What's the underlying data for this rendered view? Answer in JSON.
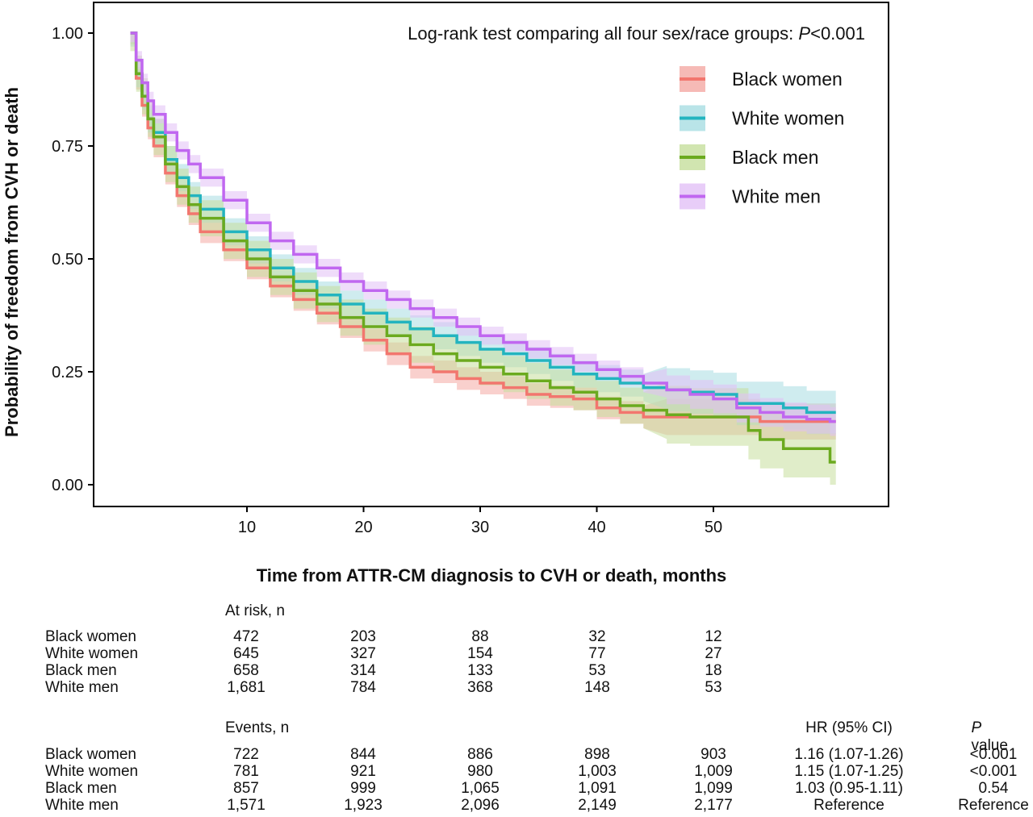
{
  "chart_data": {
    "type": "line",
    "annotation_prefix": "Log-rank test comparing all four sex/race groups: ",
    "annotation_p": "P",
    "annotation_value": "<0.001",
    "xlabel": "Time from ATTR-CM diagnosis to CVH or death, months",
    "ylabel": "Probability of freedom from CVH or death",
    "x_ticks": [
      10,
      20,
      30,
      40,
      50
    ],
    "y_ticks": [
      "1.00",
      "0.75",
      "0.50",
      "0.25",
      "0.00"
    ],
    "y_tick_values": [
      1.0,
      0.75,
      0.5,
      0.25,
      0.0
    ],
    "xlim": [
      -3,
      63
    ],
    "ylim": [
      -0.05,
      1.07
    ],
    "legend_position": "top-right",
    "series": [
      {
        "name": "Black women",
        "color": "#F2766E",
        "band_color": "#F4A9A4",
        "x": [
          0,
          0.5,
          1,
          1.5,
          2,
          3,
          4,
          5,
          6,
          8,
          10,
          12,
          14,
          16,
          18,
          20,
          22,
          24,
          26,
          28,
          30,
          32,
          34,
          36,
          38,
          40,
          42,
          44,
          46,
          48,
          50,
          52,
          54,
          56,
          58,
          60
        ],
        "y": [
          1.0,
          0.9,
          0.84,
          0.79,
          0.75,
          0.69,
          0.64,
          0.6,
          0.56,
          0.52,
          0.48,
          0.44,
          0.41,
          0.38,
          0.35,
          0.32,
          0.29,
          0.26,
          0.25,
          0.235,
          0.225,
          0.215,
          0.2,
          0.195,
          0.19,
          0.17,
          0.16,
          0.15,
          0.15,
          0.15,
          0.15,
          0.15,
          0.14,
          0.14,
          0.14,
          0.14
        ],
        "ci": 0.025
      },
      {
        "name": "White women",
        "color": "#23B4BF",
        "band_color": "#A8DDE2",
        "x": [
          0,
          0.5,
          1,
          1.5,
          2,
          3,
          4,
          5,
          6,
          8,
          10,
          12,
          14,
          16,
          18,
          20,
          22,
          24,
          26,
          28,
          30,
          32,
          34,
          36,
          38,
          40,
          42,
          44,
          46,
          48,
          50,
          52,
          54,
          56,
          58,
          60
        ],
        "y": [
          1.0,
          0.91,
          0.86,
          0.81,
          0.78,
          0.72,
          0.68,
          0.64,
          0.61,
          0.56,
          0.52,
          0.48,
          0.45,
          0.42,
          0.4,
          0.38,
          0.36,
          0.345,
          0.33,
          0.315,
          0.3,
          0.29,
          0.275,
          0.26,
          0.245,
          0.235,
          0.225,
          0.215,
          0.21,
          0.205,
          0.2,
          0.18,
          0.18,
          0.17,
          0.16,
          0.16
        ],
        "ci": 0.03
      },
      {
        "name": "Black men",
        "color": "#6BAA1F",
        "band_color": "#C6DE9C",
        "x": [
          0,
          0.5,
          1,
          1.5,
          2,
          3,
          4,
          5,
          6,
          8,
          10,
          12,
          14,
          16,
          18,
          20,
          22,
          24,
          26,
          28,
          30,
          32,
          34,
          36,
          38,
          40,
          42,
          44,
          46,
          48,
          50,
          52,
          53,
          54,
          56,
          58,
          60
        ],
        "y": [
          1.0,
          0.91,
          0.86,
          0.81,
          0.77,
          0.71,
          0.66,
          0.62,
          0.59,
          0.54,
          0.5,
          0.46,
          0.43,
          0.4,
          0.37,
          0.35,
          0.33,
          0.31,
          0.29,
          0.275,
          0.26,
          0.245,
          0.23,
          0.215,
          0.205,
          0.19,
          0.175,
          0.165,
          0.155,
          0.15,
          0.15,
          0.15,
          0.12,
          0.1,
          0.08,
          0.08,
          0.05
        ],
        "ci": 0.04
      },
      {
        "name": "White men",
        "color": "#C067F0",
        "band_color": "#E2C0F6",
        "x": [
          0,
          0.5,
          1,
          1.5,
          2,
          3,
          4,
          5,
          6,
          8,
          10,
          12,
          14,
          16,
          18,
          20,
          22,
          24,
          26,
          28,
          30,
          32,
          34,
          36,
          38,
          40,
          42,
          44,
          46,
          48,
          50,
          52,
          54,
          56,
          58,
          60
        ],
        "y": [
          1.0,
          0.94,
          0.89,
          0.85,
          0.82,
          0.78,
          0.74,
          0.71,
          0.68,
          0.63,
          0.58,
          0.54,
          0.51,
          0.48,
          0.45,
          0.43,
          0.41,
          0.39,
          0.37,
          0.35,
          0.33,
          0.315,
          0.3,
          0.285,
          0.27,
          0.255,
          0.24,
          0.225,
          0.21,
          0.2,
          0.19,
          0.17,
          0.16,
          0.15,
          0.145,
          0.14
        ],
        "ci": 0.02
      }
    ]
  },
  "at_risk": {
    "header": "At risk, n",
    "rows": [
      {
        "label": "Black women",
        "values": [
          "472",
          "203",
          "88",
          "32",
          "12"
        ]
      },
      {
        "label": "White women",
        "values": [
          "645",
          "327",
          "154",
          "77",
          "27"
        ]
      },
      {
        "label": "Black men",
        "values": [
          "658",
          "314",
          "133",
          "53",
          "18"
        ]
      },
      {
        "label": "White men",
        "values": [
          "1,681",
          "784",
          "368",
          "148",
          "53"
        ]
      }
    ]
  },
  "events": {
    "header": "Events, n",
    "hr_header": "HR (95% CI)",
    "p_header_italic": "P",
    "p_header_rest": " value",
    "rows": [
      {
        "label": "Black women",
        "values": [
          "722",
          "844",
          "886",
          "898",
          "903"
        ],
        "hr": "1.16 (1.07-1.26)",
        "p": "<0.001"
      },
      {
        "label": "White women",
        "values": [
          "781",
          "921",
          "980",
          "1,003",
          "1,009"
        ],
        "hr": "1.15 (1.07-1.25)",
        "p": "<0.001"
      },
      {
        "label": "Black men",
        "values": [
          "857",
          "999",
          "1,065",
          "1,091",
          "1,099"
        ],
        "hr": "1.03 (0.95-1.11)",
        "p": "0.54"
      },
      {
        "label": "White men",
        "values": [
          "1,571",
          "1,923",
          "2,096",
          "2,149",
          "2,177"
        ],
        "hr": "Reference",
        "p": "Reference"
      }
    ]
  }
}
